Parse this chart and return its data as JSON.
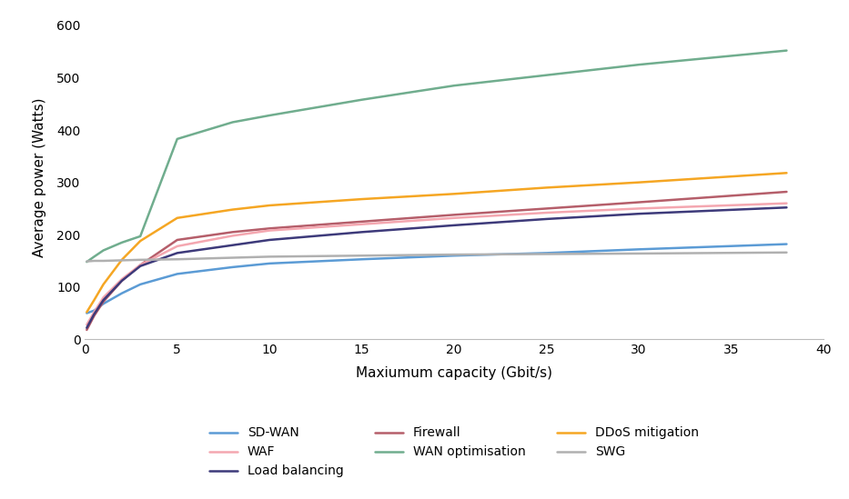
{
  "title": "",
  "xlabel": "Maxiumum capacity (Gbit/s)",
  "ylabel": "Average power (Watts)",
  "xlim": [
    0,
    40
  ],
  "ylim": [
    0,
    620
  ],
  "yticks": [
    0,
    100,
    200,
    300,
    400,
    500,
    600
  ],
  "xticks": [
    0,
    5,
    10,
    15,
    20,
    25,
    30,
    35,
    40
  ],
  "series": [
    {
      "label": "SD-WAN",
      "color": "#5b9bd5",
      "x": [
        0.1,
        0.5,
        1,
        2,
        3,
        5,
        8,
        10,
        15,
        20,
        25,
        30,
        38
      ],
      "y": [
        50,
        55,
        68,
        88,
        105,
        125,
        138,
        145,
        153,
        160,
        165,
        172,
        182
      ]
    },
    {
      "label": "Firewall",
      "color": "#b55e6a",
      "x": [
        0.1,
        0.5,
        1,
        2,
        3,
        5,
        8,
        10,
        15,
        20,
        25,
        30,
        38
      ],
      "y": [
        18,
        45,
        72,
        112,
        142,
        190,
        205,
        212,
        225,
        238,
        250,
        262,
        282
      ]
    },
    {
      "label": "WAF",
      "color": "#f4a7b0",
      "x": [
        0.1,
        0.5,
        1,
        2,
        3,
        5,
        8,
        10,
        15,
        20,
        25,
        30,
        38
      ],
      "y": [
        28,
        52,
        80,
        115,
        142,
        178,
        198,
        208,
        220,
        232,
        242,
        250,
        260
      ]
    },
    {
      "label": "WAN optimisation",
      "color": "#70ad8e",
      "x": [
        0.1,
        0.5,
        1,
        2,
        3,
        5,
        8,
        10,
        15,
        20,
        25,
        30,
        38
      ],
      "y": [
        148,
        158,
        170,
        185,
        197,
        383,
        415,
        428,
        458,
        485,
        505,
        525,
        552
      ]
    },
    {
      "label": "Load balancing",
      "color": "#3d3a7a",
      "x": [
        0.1,
        0.5,
        1,
        2,
        3,
        5,
        8,
        10,
        15,
        20,
        25,
        30,
        38
      ],
      "y": [
        22,
        48,
        75,
        112,
        140,
        165,
        180,
        190,
        205,
        218,
        230,
        240,
        252
      ]
    },
    {
      "label": "DDoS mitigation",
      "color": "#f5a623",
      "x": [
        0.1,
        0.5,
        1,
        2,
        3,
        5,
        8,
        10,
        15,
        20,
        25,
        30,
        38
      ],
      "y": [
        52,
        75,
        105,
        152,
        188,
        232,
        248,
        256,
        268,
        278,
        290,
        300,
        318
      ]
    },
    {
      "label": "SWG",
      "color": "#b0b0b0",
      "x": [
        0.1,
        0.5,
        1,
        2,
        3,
        5,
        8,
        10,
        15,
        20,
        25,
        30,
        38
      ],
      "y": [
        149,
        150,
        150,
        151,
        152,
        153,
        156,
        158,
        160,
        162,
        163,
        164,
        166
      ]
    }
  ],
  "legend_order": [
    0,
    2,
    4,
    1,
    3,
    5,
    6
  ],
  "background_color": "#ffffff",
  "line_width": 1.8,
  "spine_color": "#bbbbbb",
  "tick_label_size": 10,
  "axis_label_size": 11
}
